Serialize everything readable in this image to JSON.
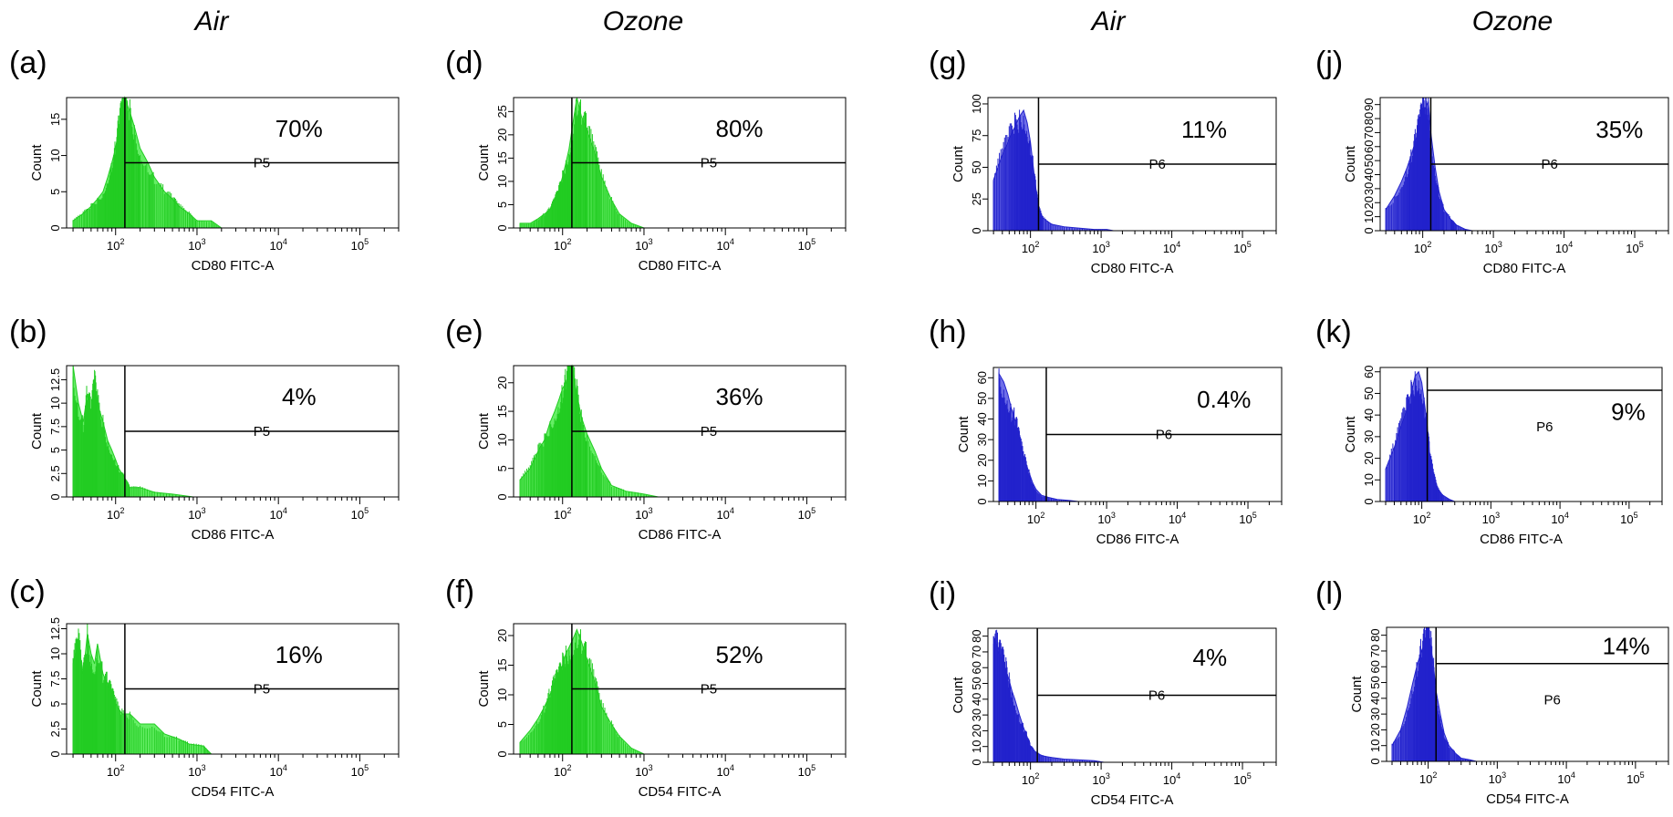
{
  "figure": {
    "columns": [
      "Air",
      "Ozone",
      "Air",
      "Ozone"
    ],
    "colors": {
      "green_fill": "#66ee66",
      "green_line": "#22cc22",
      "blue_fill": "#6f6fe8",
      "blue_line": "#2222cc",
      "gate": "#000000"
    }
  },
  "chart_data": [
    {
      "type": "histogram",
      "panel": "(a)",
      "column": "Air",
      "xlabel": "CD80 FITC-A",
      "ylabel": "Count",
      "x_scale": "log",
      "x_ticks": [
        "10^2",
        "10^3",
        "10^4",
        "10^5"
      ],
      "y_ticks": [
        "0",
        "5",
        "10",
        "15"
      ],
      "ylim": [
        0,
        18
      ],
      "gate_label": "P5",
      "gate_start": 130,
      "percent": "70%",
      "color": "green",
      "bins": [
        [
          30,
          1
        ],
        [
          40,
          2
        ],
        [
          50,
          3
        ],
        [
          60,
          4
        ],
        [
          70,
          5
        ],
        [
          80,
          7
        ],
        [
          90,
          9
        ],
        [
          100,
          11
        ],
        [
          110,
          14
        ],
        [
          120,
          16
        ],
        [
          130,
          18
        ],
        [
          150,
          16
        ],
        [
          170,
          14
        ],
        [
          200,
          11
        ],
        [
          250,
          9
        ],
        [
          300,
          7
        ],
        [
          400,
          5
        ],
        [
          500,
          4
        ],
        [
          600,
          3
        ],
        [
          800,
          2
        ],
        [
          1000,
          1
        ],
        [
          1500,
          1
        ],
        [
          2000,
          0
        ]
      ]
    },
    {
      "type": "histogram",
      "panel": "(b)",
      "column": "Air",
      "xlabel": "CD86 FITC-A",
      "ylabel": "Count",
      "x_scale": "log",
      "x_ticks": [
        "10^2",
        "10^3",
        "10^4",
        "10^5"
      ],
      "y_ticks": [
        "0",
        "2.5",
        "5",
        "7.5",
        "10",
        "12.5"
      ],
      "ylim": [
        0,
        14
      ],
      "gate_label": "P5",
      "gate_start": 130,
      "percent": "4%",
      "color": "green",
      "bins": [
        [
          30,
          14
        ],
        [
          35,
          10
        ],
        [
          40,
          8
        ],
        [
          45,
          11
        ],
        [
          50,
          9
        ],
        [
          55,
          12
        ],
        [
          60,
          10
        ],
        [
          70,
          8
        ],
        [
          80,
          6
        ],
        [
          90,
          5
        ],
        [
          100,
          4
        ],
        [
          110,
          3
        ],
        [
          130,
          2
        ],
        [
          150,
          1
        ],
        [
          200,
          1
        ],
        [
          300,
          0.5
        ],
        [
          500,
          0.3
        ],
        [
          900,
          0
        ]
      ]
    },
    {
      "type": "histogram",
      "panel": "(c)",
      "column": "Air",
      "xlabel": "CD54 FITC-A",
      "ylabel": "Count",
      "x_scale": "log",
      "x_ticks": [
        "10^2",
        "10^3",
        "10^4",
        "10^5"
      ],
      "y_ticks": [
        "0",
        "2.5",
        "5",
        "7.5",
        "10",
        "12.5"
      ],
      "ylim": [
        0,
        13
      ],
      "gate_label": "P5",
      "gate_start": 130,
      "percent": "16%",
      "color": "green",
      "bins": [
        [
          30,
          9
        ],
        [
          35,
          11
        ],
        [
          40,
          8
        ],
        [
          45,
          12
        ],
        [
          50,
          10
        ],
        [
          55,
          9
        ],
        [
          60,
          11
        ],
        [
          70,
          8
        ],
        [
          80,
          7
        ],
        [
          90,
          6
        ],
        [
          100,
          5
        ],
        [
          120,
          4
        ],
        [
          150,
          4
        ],
        [
          200,
          3
        ],
        [
          300,
          3
        ],
        [
          400,
          2
        ],
        [
          600,
          1.5
        ],
        [
          800,
          1
        ],
        [
          1200,
          0.8
        ],
        [
          1500,
          0
        ]
      ]
    },
    {
      "type": "histogram",
      "panel": "(d)",
      "column": "Ozone",
      "xlabel": "CD80 FITC-A",
      "ylabel": "Count",
      "x_scale": "log",
      "x_ticks": [
        "10^2",
        "10^3",
        "10^4",
        "10^5"
      ],
      "y_ticks": [
        "0",
        "5",
        "10",
        "15",
        "20",
        "25"
      ],
      "ylim": [
        0,
        28
      ],
      "gate_label": "P5",
      "gate_start": 130,
      "percent": "80%",
      "color": "green",
      "bins": [
        [
          30,
          1
        ],
        [
          40,
          1
        ],
        [
          50,
          2
        ],
        [
          60,
          3
        ],
        [
          70,
          4
        ],
        [
          80,
          6
        ],
        [
          90,
          8
        ],
        [
          100,
          11
        ],
        [
          110,
          14
        ],
        [
          120,
          17
        ],
        [
          130,
          21
        ],
        [
          150,
          28
        ],
        [
          170,
          24
        ],
        [
          200,
          21
        ],
        [
          250,
          16
        ],
        [
          300,
          11
        ],
        [
          400,
          6
        ],
        [
          500,
          3
        ],
        [
          700,
          1
        ],
        [
          1000,
          0
        ]
      ]
    },
    {
      "type": "histogram",
      "panel": "(e)",
      "column": "Ozone",
      "xlabel": "CD86 FITC-A",
      "ylabel": "Count",
      "x_scale": "log",
      "x_ticks": [
        "10^2",
        "10^3",
        "10^4",
        "10^5"
      ],
      "y_ticks": [
        "0",
        "5",
        "10",
        "15",
        "20"
      ],
      "ylim": [
        0,
        23
      ],
      "gate_label": "P5",
      "gate_start": 130,
      "percent": "36%",
      "color": "green",
      "bins": [
        [
          30,
          3
        ],
        [
          40,
          5
        ],
        [
          50,
          8
        ],
        [
          60,
          10
        ],
        [
          70,
          13
        ],
        [
          80,
          15
        ],
        [
          90,
          17
        ],
        [
          100,
          19
        ],
        [
          110,
          20
        ],
        [
          120,
          22
        ],
        [
          130,
          23
        ],
        [
          150,
          18
        ],
        [
          170,
          14
        ],
        [
          200,
          11
        ],
        [
          250,
          8
        ],
        [
          300,
          5
        ],
        [
          400,
          2
        ],
        [
          600,
          1
        ],
        [
          1000,
          0.5
        ],
        [
          1500,
          0
        ]
      ]
    },
    {
      "type": "histogram",
      "panel": "(f)",
      "column": "Ozone",
      "xlabel": "CD54 FITC-A",
      "ylabel": "Count",
      "x_scale": "log",
      "x_ticks": [
        "10^2",
        "10^3",
        "10^4",
        "10^5"
      ],
      "y_ticks": [
        "0",
        "5",
        "10",
        "15",
        "20"
      ],
      "ylim": [
        0,
        22
      ],
      "gate_label": "P5",
      "gate_start": 130,
      "percent": "52%",
      "color": "green",
      "bins": [
        [
          30,
          2
        ],
        [
          40,
          4
        ],
        [
          50,
          6
        ],
        [
          60,
          8
        ],
        [
          70,
          10
        ],
        [
          80,
          12
        ],
        [
          90,
          13
        ],
        [
          100,
          15
        ],
        [
          110,
          17
        ],
        [
          120,
          18
        ],
        [
          130,
          19
        ],
        [
          150,
          21
        ],
        [
          170,
          19
        ],
        [
          200,
          16
        ],
        [
          250,
          12
        ],
        [
          300,
          8
        ],
        [
          400,
          5
        ],
        [
          500,
          3
        ],
        [
          700,
          1
        ],
        [
          1000,
          0
        ]
      ]
    },
    {
      "type": "histogram",
      "panel": "(g)",
      "column": "Air",
      "xlabel": "CD80 FITC-A",
      "ylabel": "Count",
      "x_scale": "log",
      "x_ticks": [
        "10^2",
        "10^3",
        "10^4",
        "10^5"
      ],
      "y_ticks": [
        "0",
        "25",
        "50",
        "75",
        "100"
      ],
      "ylim": [
        0,
        105
      ],
      "gate_label": "P6",
      "gate_start": 130,
      "percent": "11%",
      "color": "blue",
      "bins": [
        [
          30,
          40
        ],
        [
          40,
          60
        ],
        [
          50,
          72
        ],
        [
          60,
          82
        ],
        [
          70,
          90
        ],
        [
          80,
          95
        ],
        [
          90,
          85
        ],
        [
          100,
          70
        ],
        [
          110,
          50
        ],
        [
          120,
          32
        ],
        [
          130,
          18
        ],
        [
          150,
          10
        ],
        [
          200,
          5
        ],
        [
          300,
          3
        ],
        [
          500,
          2
        ],
        [
          800,
          1
        ],
        [
          1200,
          1
        ],
        [
          1500,
          0
        ]
      ]
    },
    {
      "type": "histogram",
      "panel": "(h)",
      "column": "Air",
      "xlabel": "CD86 FITC-A",
      "ylabel": "Count",
      "x_scale": "log",
      "x_ticks": [
        "10^2",
        "10^3",
        "10^4",
        "10^5"
      ],
      "y_ticks": [
        "0",
        "10",
        "20",
        "30",
        "40",
        "50",
        "60"
      ],
      "ylim": [
        0,
        65
      ],
      "gate_label": "P6",
      "gate_start": 140,
      "percent": "0.4%",
      "color": "blue",
      "bins": [
        [
          30,
          62
        ],
        [
          35,
          58
        ],
        [
          40,
          52
        ],
        [
          45,
          45
        ],
        [
          50,
          40
        ],
        [
          55,
          34
        ],
        [
          60,
          28
        ],
        [
          70,
          20
        ],
        [
          80,
          14
        ],
        [
          90,
          9
        ],
        [
          100,
          6
        ],
        [
          120,
          3
        ],
        [
          150,
          2
        ],
        [
          200,
          1
        ],
        [
          300,
          0.5
        ],
        [
          400,
          0
        ]
      ]
    },
    {
      "type": "histogram",
      "panel": "(i)",
      "column": "Air",
      "xlabel": "CD54 FITC-A",
      "ylabel": "Count",
      "x_scale": "log",
      "x_ticks": [
        "10^2",
        "10^3",
        "10^4",
        "10^5"
      ],
      "y_ticks": [
        "0",
        "10",
        "20",
        "30",
        "40",
        "50",
        "60",
        "70",
        "80"
      ],
      "ylim": [
        0,
        85
      ],
      "gate_label": "P6",
      "gate_start": 125,
      "percent": "4%",
      "color": "blue",
      "bins": [
        [
          30,
          80
        ],
        [
          35,
          70
        ],
        [
          40,
          65
        ],
        [
          45,
          58
        ],
        [
          50,
          52
        ],
        [
          55,
          45
        ],
        [
          60,
          40
        ],
        [
          70,
          30
        ],
        [
          80,
          22
        ],
        [
          90,
          16
        ],
        [
          100,
          10
        ],
        [
          120,
          6
        ],
        [
          150,
          4
        ],
        [
          200,
          3
        ],
        [
          300,
          2
        ],
        [
          500,
          1.5
        ],
        [
          800,
          1
        ],
        [
          1100,
          0
        ]
      ]
    },
    {
      "type": "histogram",
      "panel": "(j)",
      "column": "Ozone",
      "xlabel": "CD80 FITC-A",
      "ylabel": "Count",
      "x_scale": "log",
      "x_ticks": [
        "10^2",
        "10^3",
        "10^4",
        "10^5"
      ],
      "y_ticks": [
        "0",
        "10",
        "20",
        "30",
        "40",
        "50",
        "60",
        "70",
        "80",
        "90"
      ],
      "ylim": [
        0,
        95
      ],
      "gate_label": "P6",
      "gate_start": 130,
      "percent": "35%",
      "color": "blue",
      "bins": [
        [
          30,
          15
        ],
        [
          40,
          25
        ],
        [
          50,
          35
        ],
        [
          60,
          45
        ],
        [
          70,
          55
        ],
        [
          80,
          65
        ],
        [
          90,
          75
        ],
        [
          100,
          85
        ],
        [
          110,
          88
        ],
        [
          120,
          92
        ],
        [
          130,
          70
        ],
        [
          150,
          45
        ],
        [
          170,
          28
        ],
        [
          200,
          15
        ],
        [
          250,
          8
        ],
        [
          300,
          4
        ],
        [
          400,
          1
        ],
        [
          500,
          0
        ]
      ]
    },
    {
      "type": "histogram",
      "panel": "(k)",
      "column": "Ozone",
      "xlabel": "CD86 FITC-A",
      "ylabel": "Count",
      "x_scale": "log",
      "x_ticks": [
        "10^2",
        "10^3",
        "10^4",
        "10^5"
      ],
      "y_ticks": [
        "0",
        "10",
        "20",
        "30",
        "40",
        "50",
        "60"
      ],
      "ylim": [
        0,
        62
      ],
      "gate_label": "P6",
      "gate_start": 120,
      "percent": "9%",
      "color": "blue",
      "bins": [
        [
          30,
          15
        ],
        [
          40,
          25
        ],
        [
          50,
          35
        ],
        [
          60,
          42
        ],
        [
          70,
          50
        ],
        [
          80,
          58
        ],
        [
          90,
          60
        ],
        [
          100,
          55
        ],
        [
          110,
          45
        ],
        [
          120,
          35
        ],
        [
          130,
          22
        ],
        [
          150,
          12
        ],
        [
          170,
          6
        ],
        [
          200,
          3
        ],
        [
          250,
          1
        ],
        [
          300,
          0
        ]
      ]
    },
    {
      "type": "histogram",
      "panel": "(l)",
      "column": "Ozone",
      "xlabel": "CD54 FITC-A",
      "ylabel": "Count",
      "x_scale": "log",
      "x_ticks": [
        "10^2",
        "10^3",
        "10^4",
        "10^5"
      ],
      "y_ticks": [
        "0",
        "10",
        "20",
        "30",
        "40",
        "50",
        "60",
        "70",
        "80"
      ],
      "ylim": [
        0,
        85
      ],
      "gate_label": "P6",
      "gate_start": 130,
      "percent": "14%",
      "color": "blue",
      "bins": [
        [
          30,
          10
        ],
        [
          40,
          20
        ],
        [
          50,
          35
        ],
        [
          60,
          50
        ],
        [
          70,
          62
        ],
        [
          80,
          70
        ],
        [
          90,
          75
        ],
        [
          100,
          78
        ],
        [
          110,
          72
        ],
        [
          120,
          60
        ],
        [
          130,
          45
        ],
        [
          150,
          30
        ],
        [
          170,
          18
        ],
        [
          200,
          10
        ],
        [
          250,
          5
        ],
        [
          300,
          2
        ],
        [
          400,
          1
        ],
        [
          500,
          0
        ]
      ]
    }
  ]
}
